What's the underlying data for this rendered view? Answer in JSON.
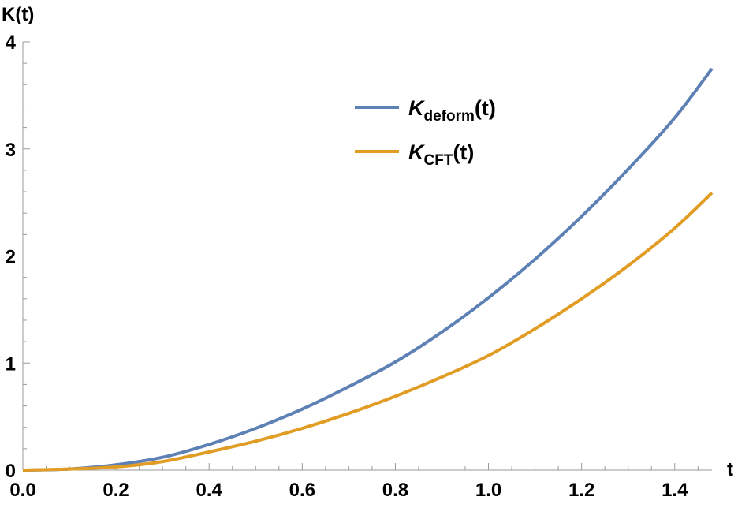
{
  "chart_data": {
    "type": "line",
    "xlabel": "t",
    "ylabel": "K(t)",
    "xlim": [
      0,
      1.48
    ],
    "ylim": [
      0,
      4
    ],
    "x_ticks": [
      "0.0",
      "0.2",
      "0.4",
      "0.6",
      "0.8",
      "1.0",
      "1.2",
      "1.4"
    ],
    "y_ticks": [
      "0",
      "1",
      "2",
      "3",
      "4"
    ],
    "legend_position": "top-center",
    "series": [
      {
        "name_main": "K",
        "name_sub": "deform",
        "name_tail": "(t)",
        "color": "#5e81b5",
        "x": [
          0,
          0.1,
          0.2,
          0.3,
          0.4,
          0.5,
          0.6,
          0.7,
          0.8,
          0.9,
          1.0,
          1.1,
          1.2,
          1.3,
          1.4,
          1.48
        ],
        "y": [
          0,
          0.01,
          0.05,
          0.12,
          0.24,
          0.39,
          0.57,
          0.78,
          1.01,
          1.29,
          1.61,
          1.97,
          2.37,
          2.81,
          3.29,
          3.75
        ]
      },
      {
        "name_main": "K",
        "name_sub": "CFT",
        "name_tail": "(t)",
        "color": "#e19c24",
        "x": [
          0,
          0.1,
          0.2,
          0.3,
          0.4,
          0.5,
          0.6,
          0.7,
          0.8,
          0.9,
          1.0,
          1.1,
          1.2,
          1.3,
          1.4,
          1.48
        ],
        "y": [
          0,
          0.01,
          0.03,
          0.08,
          0.17,
          0.27,
          0.39,
          0.53,
          0.69,
          0.87,
          1.07,
          1.32,
          1.6,
          1.91,
          2.26,
          2.59
        ]
      }
    ]
  }
}
